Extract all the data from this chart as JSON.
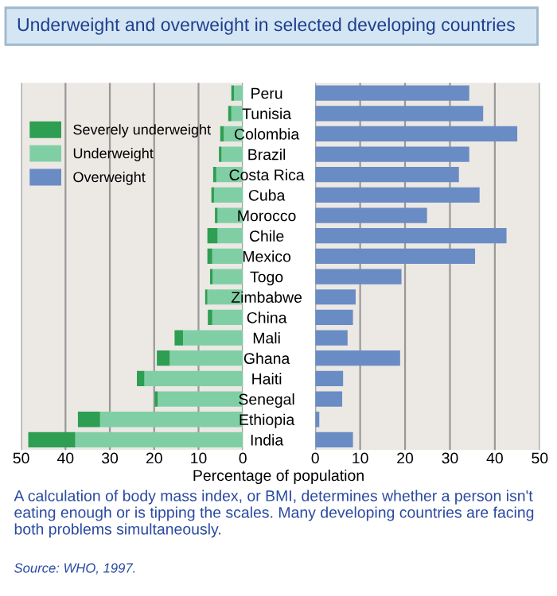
{
  "chart_data": [
    {
      "type": "bar",
      "orientation": "horizontal",
      "stacked": true,
      "title": "Underweight and overweight in selected developing countries",
      "xlabel": "Percentage of population",
      "annotations": [
        "A calculation of body mass index, or BMI, determines whether a person isn't eating enough or is tipping the scales. Many developing countries are facing both problems simultaneously.",
        "Source: WHO, 1997."
      ],
      "series": [
        {
          "name": "Underweight",
          "color": "#80cfa4",
          "values": [
            2.0,
            2.6,
            4.3,
            4.8,
            6.0,
            6.5,
            5.7,
            5.7,
            6.9,
            6.8,
            8.0,
            6.9,
            13.5,
            16.5,
            22.2,
            19.2,
            32.2,
            37.8
          ]
        },
        {
          "name": "Severely underweight",
          "color": "#2e9e52",
          "values": [
            0.6,
            0.7,
            0.8,
            0.6,
            0.7,
            0.6,
            0.6,
            2.3,
            1.1,
            0.6,
            0.5,
            1.0,
            1.9,
            2.9,
            1.7,
            0.7,
            5.0,
            10.6
          ]
        }
      ],
      "xlim": [
        50,
        0
      ],
      "xticks": [
        50,
        40,
        30,
        20,
        10,
        0
      ],
      "grid": "x",
      "legend": "top left",
      "tick_labels": "x"
    },
    {
      "type": "bar",
      "orientation": "horizontal",
      "categories": [
        "Peru",
        "Tunisia",
        "Colombia",
        "Brazil",
        "Costa Rica",
        "Cuba",
        "Morocco",
        "Chile",
        "Mexico",
        "Togo",
        "Zimbabwe",
        "China",
        "Mali",
        "Ghana",
        "Haiti",
        "Senegal",
        "Ethiopia",
        "India"
      ],
      "series": [
        {
          "name": "Overweight",
          "color": "#6a8cc4",
          "values": [
            34.3,
            37.4,
            45.0,
            34.3,
            32.0,
            36.6,
            24.9,
            42.6,
            35.6,
            19.2,
            9.0,
            8.4,
            7.2,
            18.9,
            6.2,
            6.0,
            0.9,
            8.4
          ]
        }
      ],
      "xlim": [
        0,
        50
      ],
      "xticks": [
        0,
        10,
        20,
        30,
        40,
        50
      ],
      "grid": "x"
    }
  ]
}
